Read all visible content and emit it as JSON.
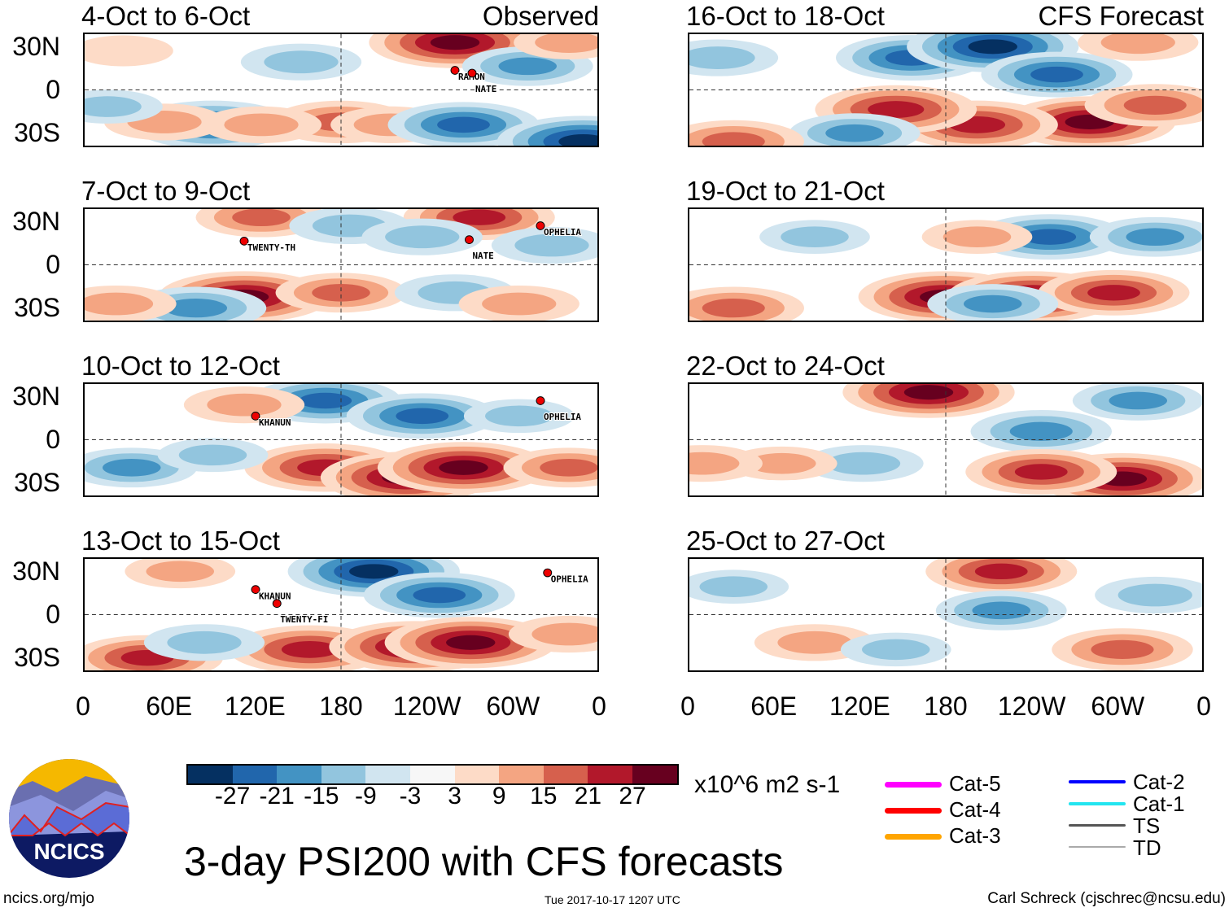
{
  "panels": [
    {
      "title": "4-Oct to 6-Oct",
      "label": "Observed",
      "storms": [
        {
          "name": "RAMON",
          "lon": 260,
          "lat": 14
        },
        {
          "name": "NATE",
          "lon": 272,
          "lat": 12
        }
      ],
      "anomalies": [
        [
          260,
          34,
          27
        ],
        [
          152,
          20,
          -12
        ],
        [
          90,
          -25,
          -24
        ],
        [
          180,
          -23,
          18
        ],
        [
          215,
          -25,
          12
        ],
        [
          266,
          -25,
          -21
        ],
        [
          350,
          -37,
          -27
        ],
        [
          124,
          -25,
          12
        ],
        [
          56,
          -23,
          12
        ],
        [
          311,
          17,
          -15
        ],
        [
          27,
          28,
          6
        ],
        [
          340,
          34,
          9
        ],
        [
          16,
          -12,
          -9
        ]
      ]
    },
    {
      "title": "7-Oct to 9-Oct",
      "label": "",
      "storms": [
        {
          "name": "TWENTY-TH",
          "lon": 112,
          "lat": 17
        },
        {
          "name": "NATE",
          "lon": 270,
          "lat": 18
        },
        {
          "name": "OPHELIA",
          "lon": 320,
          "lat": 28
        }
      ],
      "anomalies": [
        [
          112,
          -23,
          27
        ],
        [
          124,
          34,
          15
        ],
        [
          277,
          34,
          21
        ],
        [
          186,
          28,
          -12
        ],
        [
          78,
          -31,
          -18
        ],
        [
          180,
          -20,
          15
        ],
        [
          22,
          -28,
          12
        ],
        [
          237,
          20,
          -12
        ],
        [
          328,
          14,
          -12
        ],
        [
          260,
          -20,
          -12
        ],
        [
          305,
          -28,
          12
        ]
      ]
    },
    {
      "title": "10-Oct to 12-Oct",
      "label": "",
      "storms": [
        {
          "name": "KHANUN",
          "lon": 120,
          "lat": 17
        },
        {
          "name": "OPHELIA",
          "lon": 320,
          "lat": 28
        }
      ],
      "anomalies": [
        [
          169,
          28,
          -21
        ],
        [
          237,
          17,
          -21
        ],
        [
          169,
          -20,
          24
        ],
        [
          226,
          -27,
          27
        ],
        [
          266,
          -20,
          27
        ],
        [
          340,
          -20,
          15
        ],
        [
          33,
          -20,
          -15
        ],
        [
          112,
          25,
          12
        ],
        [
          90,
          -11,
          -9
        ],
        [
          305,
          17,
          -9
        ]
      ]
    },
    {
      "title": "13-Oct to 15-Oct",
      "label": "",
      "storms": [
        {
          "name": "KHANUN",
          "lon": 120,
          "lat": 18
        },
        {
          "name": "TWENTY-FI",
          "lon": 135,
          "lat": 8
        },
        {
          "name": "OPHELIA",
          "lon": 325,
          "lat": 30
        }
      ],
      "anomalies": [
        [
          203,
          31,
          -27
        ],
        [
          249,
          14,
          -21
        ],
        [
          158,
          -25,
          24
        ],
        [
          232,
          -23,
          27
        ],
        [
          271,
          -20,
          27
        ],
        [
          44,
          -31,
          21
        ],
        [
          340,
          -14,
          12
        ],
        [
          84,
          -20,
          -12
        ],
        [
          67,
          31,
          9
        ]
      ]
    },
    {
      "title": "16-Oct to 18-Oct",
      "label": "CFS Forecast",
      "storms": [],
      "anomalies": [
        [
          156,
          23,
          -21
        ],
        [
          213,
          31,
          -27
        ],
        [
          258,
          11,
          -21
        ],
        [
          281,
          -23,
          27
        ],
        [
          202,
          -25,
          24
        ],
        [
          145,
          -14,
          24
        ],
        [
          327,
          -11,
          18
        ],
        [
          116,
          -31,
          -15
        ],
        [
          31,
          -37,
          18
        ],
        [
          20,
          23,
          -12
        ],
        [
          315,
          34,
          12
        ]
      ]
    },
    {
      "title": "19-Oct to 21-Oct",
      "label": "",
      "storms": [],
      "anomalies": [
        [
          179,
          -23,
          27
        ],
        [
          241,
          -23,
          27
        ],
        [
          298,
          -20,
          21
        ],
        [
          253,
          20,
          -21
        ],
        [
          327,
          20,
          -15
        ],
        [
          31,
          -31,
          18
        ],
        [
          88,
          20,
          -9
        ],
        [
          202,
          20,
          9
        ],
        [
          213,
          -28,
          -15
        ]
      ]
    },
    {
      "title": "22-Oct to 24-Oct",
      "label": "",
      "storms": [],
      "anomalies": [
        [
          168,
          34,
          27
        ],
        [
          247,
          6,
          -18
        ],
        [
          315,
          28,
          -15
        ],
        [
          304,
          -28,
          27
        ],
        [
          247,
          -23,
          21
        ],
        [
          122,
          -17,
          -12
        ],
        [
          65,
          -17,
          9
        ],
        [
          9,
          -17,
          12
        ]
      ]
    },
    {
      "title": "25-Oct to 27-Oct",
      "label": "",
      "storms": [],
      "anomalies": [
        [
          219,
          31,
          21
        ],
        [
          219,
          3,
          -15
        ],
        [
          327,
          14,
          -12
        ],
        [
          304,
          -25,
          18
        ],
        [
          88,
          -20,
          12
        ],
        [
          145,
          -25,
          -9
        ],
        [
          31,
          20,
          -9
        ]
      ]
    }
  ],
  "lat_labels": [
    "30N",
    "0",
    "30S"
  ],
  "lon_labels": [
    "0",
    "60E",
    "120E",
    "180",
    "120W",
    "60W",
    "0"
  ],
  "colorbar": {
    "colors": [
      "#053061",
      "#2166ac",
      "#4393c3",
      "#92c5de",
      "#d1e5f0",
      "#f7f7f7",
      "#fddbc7",
      "#f4a582",
      "#d6604d",
      "#b2182b",
      "#67001f"
    ],
    "labels": [
      "-27",
      "-21",
      "-15",
      "-9",
      "-3",
      "3",
      "9",
      "15",
      "21",
      "27"
    ],
    "units": "x10^6 m2 s-1"
  },
  "legend": [
    {
      "label": "Cat-5",
      "color": "#ff00ff"
    },
    {
      "label": "Cat-4",
      "color": "#ff0000"
    },
    {
      "label": "Cat-3",
      "color": "#ffa500"
    },
    {
      "label": "Cat-2",
      "color": "#0000ff"
    },
    {
      "label": "Cat-1",
      "color": "#22e5f0"
    },
    {
      "label": "TS",
      "color": "#555555"
    },
    {
      "label": "TD",
      "color": "#aaaaaa"
    }
  ],
  "logo_text": "NCICS",
  "title": "3-day PSI200 with CFS forecasts",
  "footer": {
    "left": "ncics.org/mjo",
    "center": "Tue 2017-10-17 1207 UTC",
    "right": "Carl Schreck (cjschrec@ncsu.edu)"
  }
}
